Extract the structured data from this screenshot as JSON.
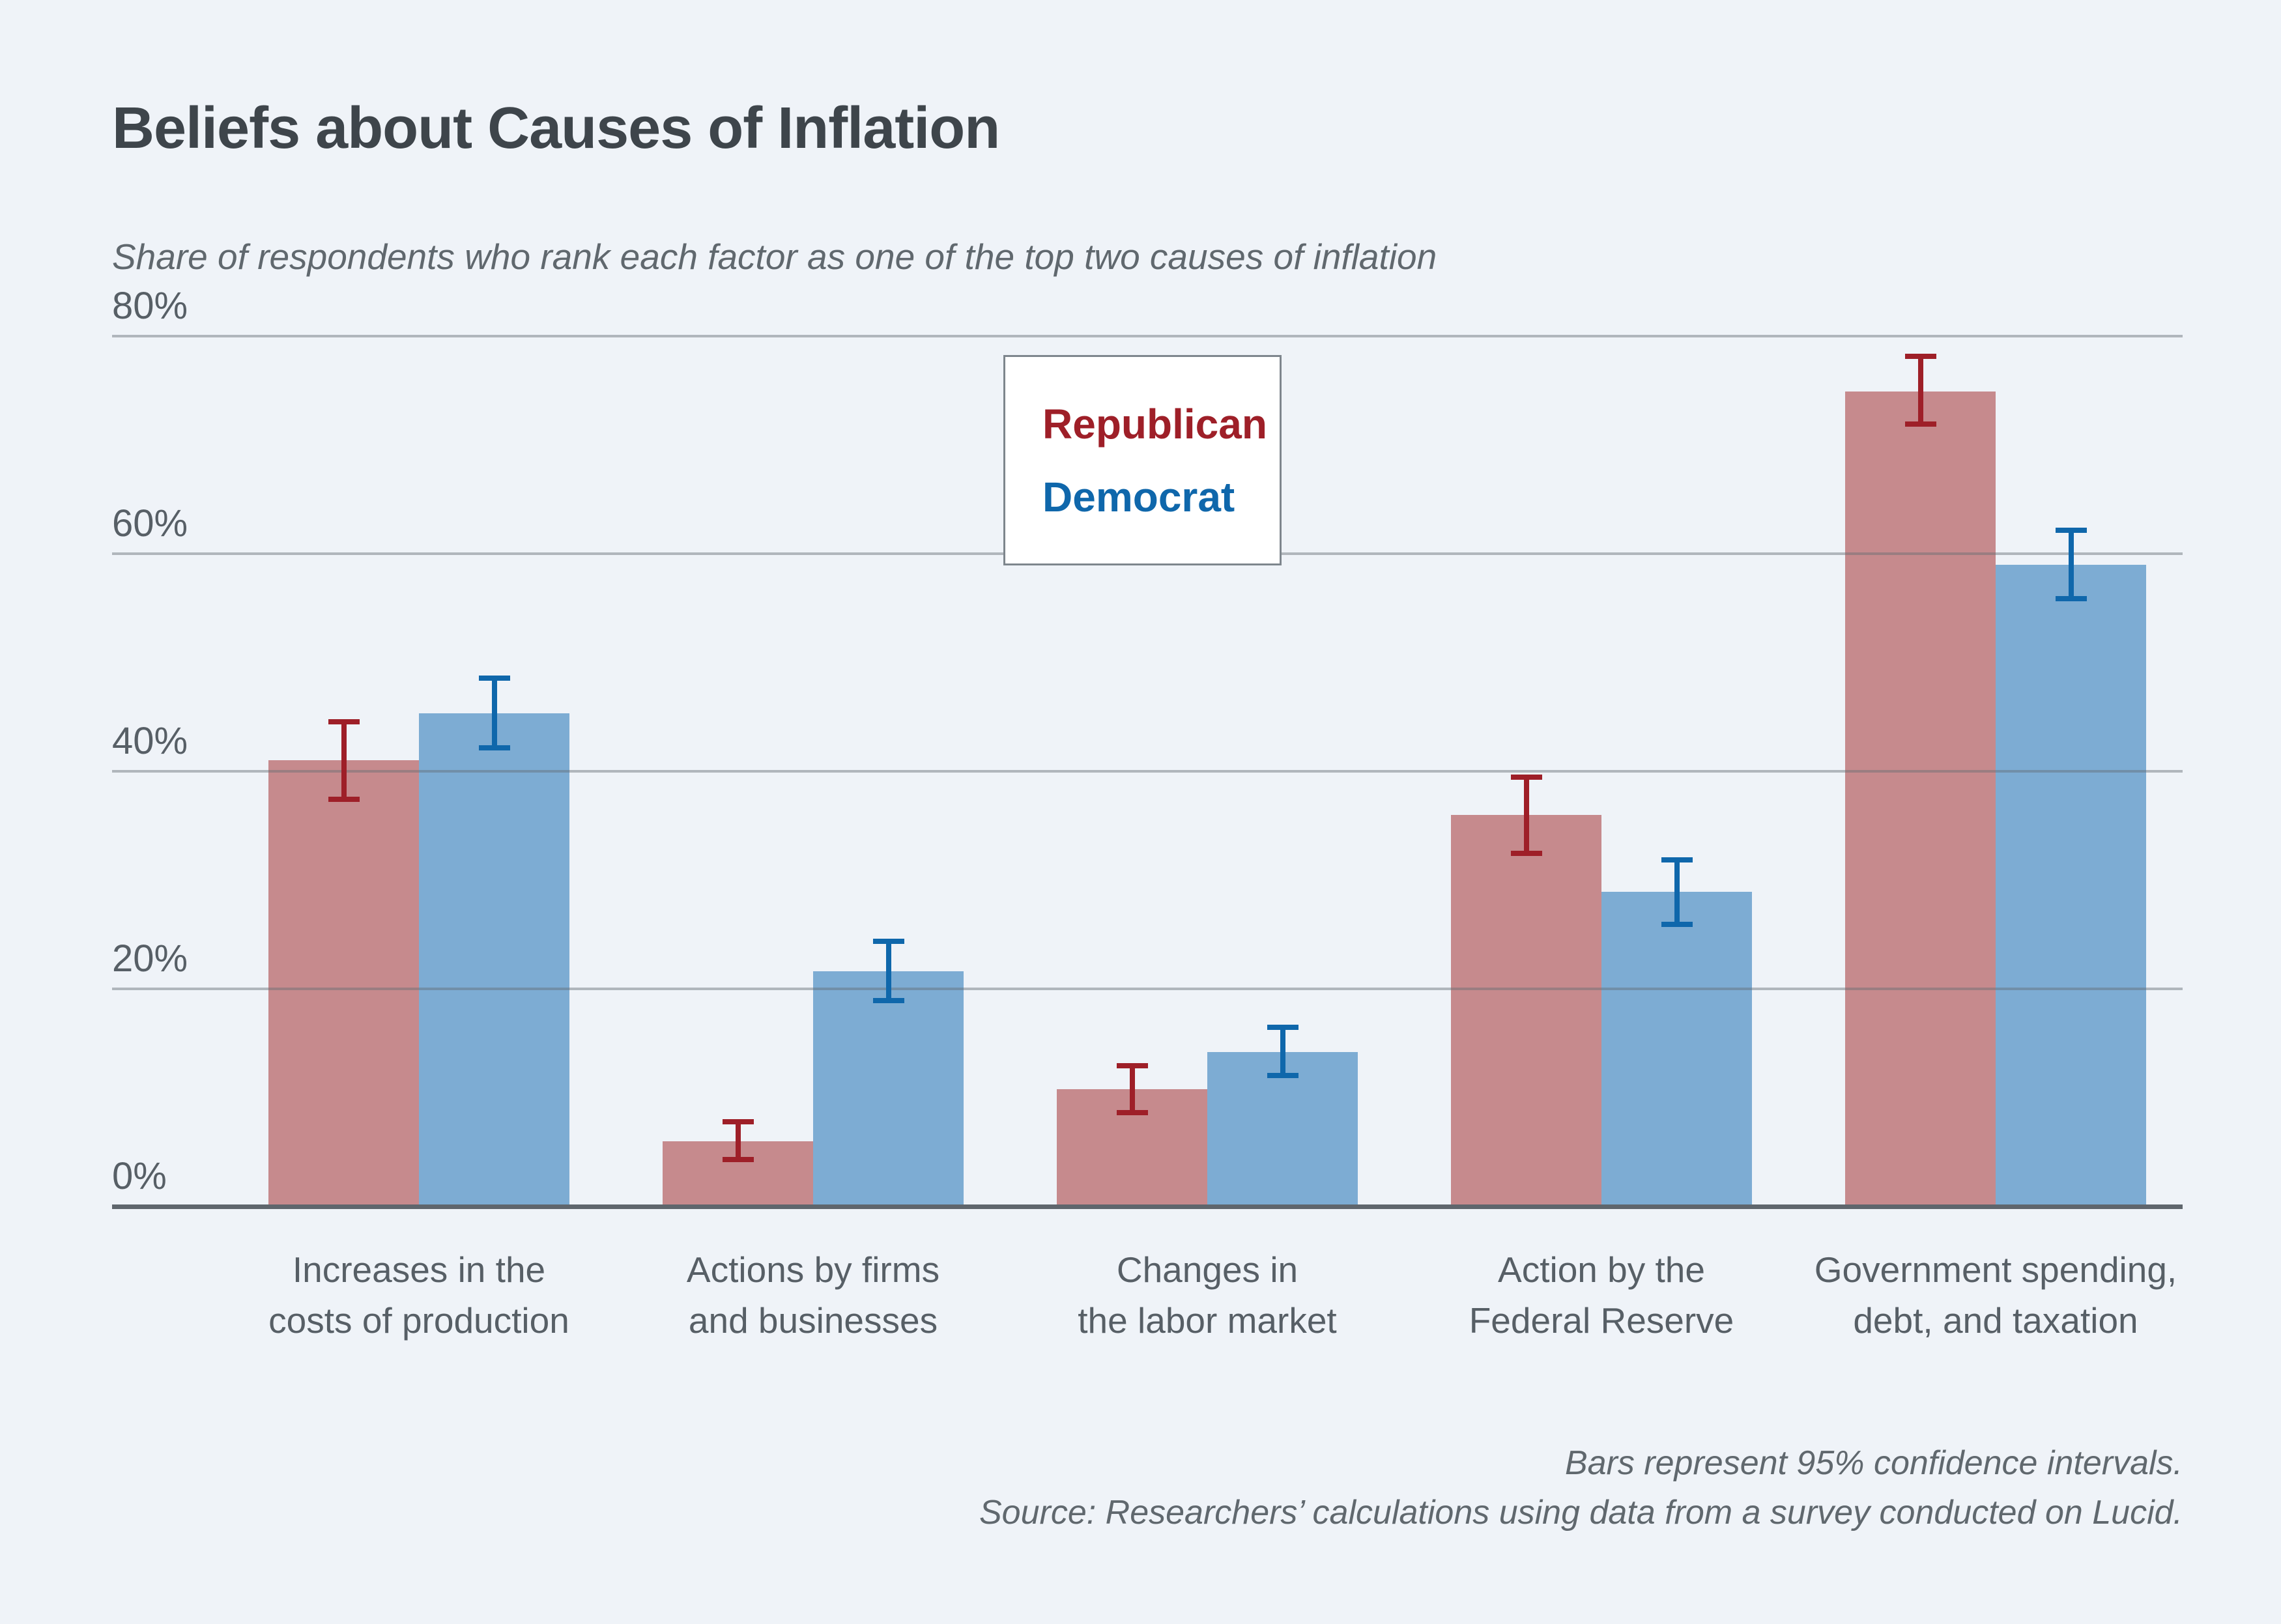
{
  "page": {
    "background": "#eff3f8"
  },
  "chart_data": {
    "type": "bar",
    "title": "Beliefs about Causes of Inflation",
    "subtitle": "Share of respondents who rank each factor as one of the top two causes of inflation",
    "categories": [
      [
        "Increases in the",
        "costs of production"
      ],
      [
        "Actions by firms",
        "and businesses"
      ],
      [
        "Changes in",
        "the labor market"
      ],
      [
        "Action by the",
        "Federal Reserve"
      ],
      [
        "Government spending,",
        "debt, and taxation"
      ]
    ],
    "series": [
      {
        "name": "Republican",
        "bar_color": "#c68a8d",
        "accent_color": "#9e1f28",
        "values": [
          41.0,
          6.0,
          10.8,
          36.0,
          74.9
        ],
        "ci_low": [
          37.2,
          4.1,
          8.4,
          32.2,
          71.7
        ],
        "ci_high": [
          44.8,
          8.0,
          13.2,
          39.7,
          78.4
        ]
      },
      {
        "name": "Democrat",
        "bar_color": "#7dacd3",
        "accent_color": "#0f67ab",
        "values": [
          45.3,
          21.6,
          14.2,
          28.9,
          59.0
        ],
        "ci_low": [
          41.9,
          18.7,
          11.8,
          25.7,
          55.6
        ],
        "ci_high": [
          48.8,
          24.6,
          16.7,
          32.1,
          62.4
        ]
      }
    ],
    "ylim": [
      0,
      80
    ],
    "yticks": [
      {
        "value": 80,
        "label": "80%"
      },
      {
        "value": 60,
        "label": "60%"
      },
      {
        "value": 40,
        "label": "40%"
      },
      {
        "value": 20,
        "label": "20%"
      },
      {
        "value": 0,
        "label": "0%"
      }
    ],
    "grid": "horizontal",
    "legend_position": "top-center",
    "error_bars": "95% confidence intervals",
    "footnotes": [
      "Bars represent 95% confidence intervals.",
      "Source: Researchers’ calculations using data from a survey conducted on Lucid."
    ]
  }
}
